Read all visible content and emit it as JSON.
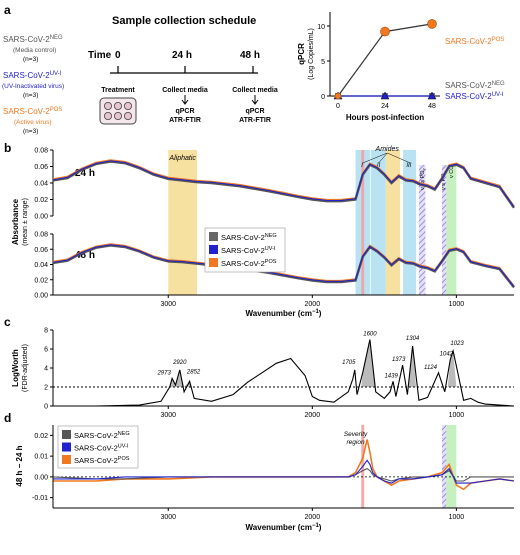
{
  "colors": {
    "neg": "#666666",
    "uvi": "#2222cc",
    "pos": "#f07820",
    "aliphatic": "#f5d98a",
    "amide_i": "#a8dcf0",
    "amide_ii": "#f5d98a",
    "amide_iii": "#a8dcf0",
    "co": "#b8ecb0",
    "severity": "#f4a0a0",
    "hatch": "#b0a0e0"
  },
  "panel_a": {
    "letter": "a",
    "title": "Sample collection schedule",
    "groups": [
      {
        "name": "SARS-CoV-2",
        "sup": "NEG",
        "desc": "(Media control)",
        "n": "(n=3)",
        "color": "#555555"
      },
      {
        "name": "SARS-CoV-2",
        "sup": "UV-I",
        "desc": "(UV-Inactivated virus)",
        "n": "(n=3)",
        "color": "#2222cc"
      },
      {
        "name": "SARS-CoV-2",
        "sup": "POS",
        "desc": "(Active virus)",
        "n": "(n=3)",
        "color": "#f07820"
      }
    ],
    "timeline": {
      "label": "Time",
      "t0": "0",
      "t1": "24 h",
      "t2": "48 h",
      "treatment": "Treatment",
      "collect1": "Collect media",
      "collect2": "Collect media",
      "assay1a": "qPCR",
      "assay1b": "ATR-FTIR",
      "assay2a": "qPCR",
      "assay2b": "ATR-FTIR"
    },
    "qpcr": {
      "ylabel": "qPCR",
      "ylabel2": "(Log Copies/mL)",
      "xlabel": "Hours post-infection",
      "xticks": [
        "0",
        "24",
        "48"
      ],
      "yticks": [
        "0",
        "5",
        "10"
      ],
      "ylim": [
        0,
        12
      ],
      "x": [
        0,
        24,
        48
      ],
      "series": [
        {
          "name": "SARS-CoV-2",
          "sup": "POS",
          "values": [
            0,
            9.2,
            10.3
          ],
          "color": "#f07820"
        },
        {
          "name": "SARS-CoV-2",
          "sup": "NEG",
          "values": [
            0,
            0,
            0
          ],
          "color": "#555555"
        },
        {
          "name": "SARS-CoV-2",
          "sup": "UV-I",
          "values": [
            0,
            0,
            0
          ],
          "color": "#2222cc"
        }
      ]
    }
  },
  "panel_b": {
    "letter": "b",
    "ylabel": "Absorbance",
    "ylabel2": "(mean ± range)",
    "xlabel": "Wavenumber (cm",
    "xlabel_unit": "−1",
    "xticks": [
      "3000",
      "2000",
      "1000"
    ],
    "yticks": [
      "0.00",
      "0.02",
      "0.04",
      "0.06",
      "0.08"
    ],
    "label_24": "24 h",
    "label_48": "48 h",
    "band_aliphatic": "Aliphatic",
    "band_amides": "Amides",
    "amide_i": "I",
    "amide_ii": "II",
    "amide_iii": "III",
    "band_vas": "ν as PO",
    "band_vs": "ν s PO",
    "band_co": "ν CO",
    "po_sub": "2",
    "legend": [
      {
        "name": "SARS-CoV-2",
        "sup": "NEG"
      },
      {
        "name": "SARS-CoV-2",
        "sup": "UV-I"
      },
      {
        "name": "SARS-CoV-2",
        "sup": "POS"
      }
    ]
  },
  "panel_c": {
    "letter": "c",
    "ylabel": "LogWorth",
    "ylabel2": "(FDR-adjusted)",
    "xticks": [
      "3000",
      "2000",
      "1000"
    ],
    "yticks": [
      "0",
      "2",
      "4",
      "6",
      "8"
    ],
    "peaks": [
      "2973",
      "2920",
      "2852",
      "1705",
      "1600",
      "1439",
      "1373",
      "1304",
      "1124",
      "1042",
      "1023"
    ]
  },
  "panel_d": {
    "letter": "d",
    "ylabel": "48 h − 24 h",
    "xlabel": "Wavenumber (cm",
    "xlabel_unit": "−1",
    "xticks": [
      "3000",
      "2000",
      "1000"
    ],
    "yticks": [
      "-0.01",
      "0.00",
      "0.01",
      "0.02"
    ],
    "severity1": "Severity",
    "severity2": "region",
    "legend": [
      {
        "name": "SARS-CoV-2",
        "sup": "NEG"
      },
      {
        "name": "SARS-CoV-2",
        "sup": "UV-I"
      },
      {
        "name": "SARS-CoV-2",
        "sup": "POS"
      }
    ]
  },
  "chart_data": [
    {
      "type": "line",
      "panel": "a",
      "x": [
        0,
        24,
        48
      ],
      "xlabel": "Hours post-infection",
      "ylabel": "qPCR (Log Copies/mL)",
      "ylim": [
        0,
        12
      ],
      "series": [
        {
          "name": "SARS-CoV-2 POS",
          "values": [
            0,
            9.2,
            10.3
          ]
        },
        {
          "name": "SARS-CoV-2 NEG",
          "values": [
            0,
            0,
            0
          ]
        },
        {
          "name": "SARS-CoV-2 UV-I",
          "values": [
            0,
            0,
            0
          ]
        }
      ]
    },
    {
      "type": "line",
      "panel": "b-24h",
      "xlim": [
        3800,
        600
      ],
      "ylim": [
        0,
        0.08
      ],
      "xlabel": "Wavenumber (cm−1)",
      "ylabel": "Absorbance (mean ± range)",
      "x": [
        3800,
        3700,
        3600,
        3500,
        3400,
        3300,
        3200,
        3100,
        3000,
        2900,
        2800,
        2700,
        2500,
        2300,
        2100,
        2000,
        1900,
        1800,
        1700,
        1650,
        1600,
        1550,
        1500,
        1450,
        1400,
        1350,
        1300,
        1250,
        1200,
        1150,
        1100,
        1050,
        1000,
        950,
        900,
        800,
        700,
        600
      ],
      "series": [
        {
          "name": "SARS-CoV-2 NEG",
          "values": [
            0.043,
            0.046,
            0.056,
            0.063,
            0.066,
            0.064,
            0.058,
            0.05,
            0.045,
            0.043,
            0.041,
            0.04,
            0.036,
            0.03,
            0.023,
            0.02,
            0.018,
            0.018,
            0.02,
            0.05,
            0.062,
            0.058,
            0.05,
            0.04,
            0.048,
            0.043,
            0.042,
            0.038,
            0.036,
            0.032,
            0.045,
            0.06,
            0.062,
            0.058,
            0.045,
            0.04,
            0.035,
            0.01
          ]
        }
      ]
    },
    {
      "type": "line",
      "panel": "b-48h",
      "xlim": [
        3800,
        600
      ],
      "ylim": [
        0,
        0.08
      ],
      "xlabel": "Wavenumber (cm−1)",
      "ylabel": "Absorbance (mean ± range)",
      "x": [
        3800,
        3700,
        3600,
        3500,
        3400,
        3300,
        3200,
        3100,
        3000,
        2900,
        2800,
        2700,
        2500,
        2300,
        2100,
        2000,
        1900,
        1800,
        1700,
        1650,
        1600,
        1550,
        1500,
        1450,
        1400,
        1350,
        1300,
        1250,
        1200,
        1150,
        1100,
        1050,
        1000,
        950,
        900,
        800,
        700,
        600
      ],
      "series": [
        {
          "name": "SARS-CoV-2 NEG",
          "values": [
            0.042,
            0.045,
            0.055,
            0.062,
            0.065,
            0.063,
            0.057,
            0.049,
            0.044,
            0.043,
            0.041,
            0.039,
            0.035,
            0.029,
            0.022,
            0.019,
            0.017,
            0.017,
            0.019,
            0.05,
            0.063,
            0.057,
            0.049,
            0.039,
            0.047,
            0.042,
            0.041,
            0.037,
            0.035,
            0.031,
            0.044,
            0.058,
            0.06,
            0.056,
            0.043,
            0.038,
            0.034,
            0.01
          ]
        }
      ]
    },
    {
      "type": "line",
      "panel": "c",
      "xlim": [
        3800,
        600
      ],
      "ylim": [
        0,
        8
      ],
      "ylabel": "LogWorth (FDR-adjusted)",
      "x": [
        3800,
        3500,
        3200,
        3050,
        2990,
        2973,
        2950,
        2920,
        2890,
        2852,
        2820,
        2700,
        2550,
        2450,
        2350,
        2250,
        2150,
        2050,
        2000,
        1950,
        1850,
        1750,
        1720,
        1705,
        1690,
        1650,
        1600,
        1560,
        1500,
        1460,
        1439,
        1420,
        1373,
        1340,
        1304,
        1260,
        1200,
        1124,
        1080,
        1042,
        1023,
        990,
        950,
        900,
        850,
        800,
        700,
        600
      ],
      "values": [
        0,
        0,
        0.1,
        0.5,
        2,
        2.9,
        2.2,
        3.8,
        1.5,
        2.6,
        0.8,
        0.5,
        1.2,
        2.5,
        3.5,
        4.5,
        5.0,
        3.2,
        1.0,
        0.6,
        0.4,
        1.5,
        2.8,
        3.8,
        1.2,
        3.5,
        7.0,
        1.5,
        0.8,
        1.5,
        2.6,
        1.0,
        4.3,
        1.2,
        6.3,
        0.6,
        0.9,
        3.5,
        1.5,
        4.9,
        5.8,
        3.5,
        0.6,
        0.8,
        0.4,
        0.2,
        0.1,
        0
      ]
    },
    {
      "type": "line",
      "panel": "d",
      "xlim": [
        3800,
        600
      ],
      "ylim": [
        -0.015,
        0.025
      ],
      "ylabel": "48 h − 24 h",
      "x": [
        3800,
        3500,
        3300,
        3000,
        2700,
        2400,
        2100,
        1900,
        1750,
        1700,
        1650,
        1620,
        1600,
        1580,
        1550,
        1500,
        1450,
        1400,
        1300,
        1200,
        1100,
        1050,
        1000,
        950,
        900,
        800,
        700,
        600
      ],
      "series": [
        {
          "name": "SARS-CoV-2 NEG",
          "values": [
            0,
            -0.001,
            -0.001,
            0,
            0,
            0,
            0,
            0,
            0,
            0.001,
            0.003,
            0.004,
            0.003,
            0.001,
            0,
            -0.001,
            -0.002,
            -0.001,
            0,
            0,
            0.001,
            0.003,
            -0.002,
            -0.002,
            0,
            0,
            0,
            0
          ]
        },
        {
          "name": "SARS-CoV-2 UV-I",
          "values": [
            -0.001,
            -0.001,
            0,
            0,
            0,
            0,
            0,
            0,
            0,
            0.001,
            0.005,
            0.008,
            0.006,
            0.002,
            0,
            -0.002,
            -0.003,
            -0.001,
            -0.001,
            0,
            0.001,
            0.004,
            -0.003,
            -0.003,
            -0.003,
            -0.002,
            -0.001,
            -0.002
          ]
        },
        {
          "name": "SARS-CoV-2 POS",
          "values": [
            -0.002,
            -0.002,
            -0.001,
            -0.001,
            0,
            0,
            0,
            0,
            0,
            0.002,
            0.009,
            0.018,
            0.012,
            0.004,
            0,
            -0.002,
            -0.004,
            -0.002,
            -0.001,
            0,
            0.002,
            0.006,
            -0.004,
            -0.006,
            -0.003,
            -0.002,
            -0.001,
            -0.002
          ]
        }
      ]
    }
  ]
}
